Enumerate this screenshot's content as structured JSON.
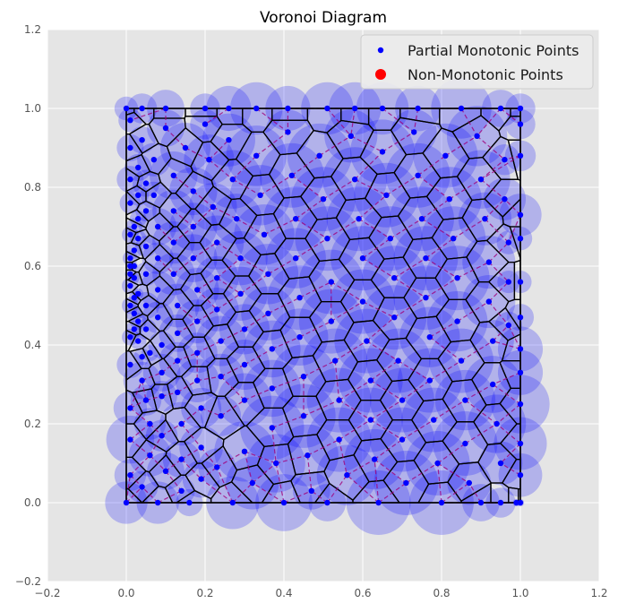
{
  "chart_data": {
    "type": "scatter",
    "title": "Voronoi Diagram",
    "xlabel": "",
    "ylabel": "",
    "xlim": [
      -0.2,
      1.2
    ],
    "ylim": [
      -0.2,
      1.2
    ],
    "xticks": [
      "−0.2",
      "0.0",
      "0.2",
      "0.4",
      "0.6",
      "0.8",
      "1.0",
      "1.2"
    ],
    "yticks": [
      "−0.2",
      "0.0",
      "0.2",
      "0.4",
      "0.6",
      "0.8",
      "1.0",
      "1.2"
    ],
    "xtick_values": [
      -0.2,
      0.0,
      0.2,
      0.4,
      0.6,
      0.8,
      1.0,
      1.2
    ],
    "ytick_values": [
      -0.2,
      0.0,
      0.2,
      0.4,
      0.6,
      0.8,
      1.0,
      1.2
    ],
    "grid": true,
    "legend_position": "top-right",
    "boundary": {
      "x": [
        0,
        1
      ],
      "y": [
        0,
        1
      ]
    },
    "series": [
      {
        "name": "Partial Monotonic Points",
        "color": "#0000ff",
        "marker": "circle",
        "points": [
          [
            0,
            0
          ],
          [
            0.08,
            0
          ],
          [
            0.16,
            0
          ],
          [
            0.27,
            0
          ],
          [
            0.4,
            0
          ],
          [
            0.51,
            0
          ],
          [
            0.64,
            0
          ],
          [
            0.8,
            0
          ],
          [
            0.9,
            0
          ],
          [
            0.95,
            0
          ],
          [
            0.99,
            0
          ],
          [
            1,
            0
          ],
          [
            0,
            1
          ],
          [
            0.04,
            1
          ],
          [
            0.1,
            1
          ],
          [
            0.2,
            1
          ],
          [
            0.26,
            1
          ],
          [
            0.33,
            1
          ],
          [
            0.41,
            1
          ],
          [
            0.51,
            1
          ],
          [
            0.58,
            1
          ],
          [
            0.65,
            1
          ],
          [
            0.74,
            1
          ],
          [
            0.85,
            1
          ],
          [
            0.95,
            1
          ],
          [
            1,
            1
          ],
          [
            1,
            0.07
          ],
          [
            1,
            0.15
          ],
          [
            1,
            0.25
          ],
          [
            1,
            0.33
          ],
          [
            1,
            0.39
          ],
          [
            1,
            0.47
          ],
          [
            1,
            0.56
          ],
          [
            1,
            0.67
          ],
          [
            1,
            0.73
          ],
          [
            1,
            0.88
          ],
          [
            1,
            0.96
          ],
          [
            0.01,
            0.97
          ],
          [
            0.01,
            0.9
          ],
          [
            0.01,
            0.82
          ],
          [
            0.01,
            0.76
          ],
          [
            0.01,
            0.68
          ],
          [
            0.01,
            0.6
          ],
          [
            0.01,
            0.5
          ],
          [
            0.01,
            0.42
          ],
          [
            0.01,
            0.35
          ],
          [
            0.01,
            0.24
          ],
          [
            0.01,
            0.16
          ],
          [
            0.01,
            0.07
          ],
          [
            0.01,
            0.55
          ],
          [
            0.01,
            0.58
          ],
          [
            0.01,
            0.62
          ],
          [
            0.02,
            0.52
          ],
          [
            0.02,
            0.6
          ],
          [
            0.02,
            0.57
          ],
          [
            0.03,
            0.53
          ],
          [
            0.02,
            0.48
          ],
          [
            0.02,
            0.44
          ],
          [
            0.02,
            0.64
          ],
          [
            0.03,
            0.67
          ],
          [
            0.02,
            0.7
          ],
          [
            0.03,
            0.72
          ],
          [
            0.03,
            0.46
          ],
          [
            0.03,
            0.41
          ],
          [
            0.03,
            0.78
          ],
          [
            0.03,
            0.85
          ],
          [
            0.04,
            0.92
          ],
          [
            0.04,
            0.37
          ],
          [
            0.04,
            0.31
          ],
          [
            0.05,
            0.26
          ],
          [
            0.05,
            0.81
          ],
          [
            0.05,
            0.74
          ],
          [
            0.05,
            0.65
          ],
          [
            0.05,
            0.58
          ],
          [
            0.05,
            0.5
          ],
          [
            0.05,
            0.44
          ],
          [
            0.06,
            0.38
          ],
          [
            0.06,
            0.2
          ],
          [
            0.06,
            0.12
          ],
          [
            0.04,
            0.04
          ],
          [
            0.07,
            0.87
          ],
          [
            0.07,
            0.78
          ],
          [
            0.08,
            0.7
          ],
          [
            0.08,
            0.62
          ],
          [
            0.08,
            0.54
          ],
          [
            0.08,
            0.47
          ],
          [
            0.09,
            0.4
          ],
          [
            0.09,
            0.33
          ],
          [
            0.09,
            0.27
          ],
          [
            0.09,
            0.17
          ],
          [
            0.1,
            0.08
          ],
          [
            0.1,
            0.95
          ],
          [
            0.12,
            0.83
          ],
          [
            0.12,
            0.74
          ],
          [
            0.12,
            0.66
          ],
          [
            0.12,
            0.58
          ],
          [
            0.13,
            0.5
          ],
          [
            0.13,
            0.43
          ],
          [
            0.13,
            0.36
          ],
          [
            0.13,
            0.28
          ],
          [
            0.14,
            0.2
          ],
          [
            0.14,
            0.11
          ],
          [
            0.14,
            0.03
          ],
          [
            0.15,
            0.9
          ],
          [
            0.17,
            0.79
          ],
          [
            0.17,
            0.7
          ],
          [
            0.17,
            0.62
          ],
          [
            0.18,
            0.54
          ],
          [
            0.18,
            0.46
          ],
          [
            0.18,
            0.38
          ],
          [
            0.18,
            0.31
          ],
          [
            0.19,
            0.24
          ],
          [
            0.19,
            0.14
          ],
          [
            0.19,
            0.06
          ],
          [
            0.2,
            0.96
          ],
          [
            0.21,
            0.87
          ],
          [
            0.22,
            0.75
          ],
          [
            0.23,
            0.66
          ],
          [
            0.23,
            0.57
          ],
          [
            0.23,
            0.49
          ],
          [
            0.24,
            0.41
          ],
          [
            0.24,
            0.32
          ],
          [
            0.24,
            0.22
          ],
          [
            0.23,
            0.09
          ],
          [
            0.26,
            0.92
          ],
          [
            0.27,
            0.82
          ],
          [
            0.28,
            0.72
          ],
          [
            0.29,
            0.62
          ],
          [
            0.29,
            0.53
          ],
          [
            0.3,
            0.44
          ],
          [
            0.3,
            0.35
          ],
          [
            0.3,
            0.26
          ],
          [
            0.3,
            0.13
          ],
          [
            0.32,
            0.05
          ],
          [
            0.33,
            0.88
          ],
          [
            0.34,
            0.78
          ],
          [
            0.35,
            0.68
          ],
          [
            0.36,
            0.58
          ],
          [
            0.36,
            0.48
          ],
          [
            0.37,
            0.39
          ],
          [
            0.37,
            0.29
          ],
          [
            0.37,
            0.19
          ],
          [
            0.38,
            0.1
          ],
          [
            0.41,
            0.94
          ],
          [
            0.42,
            0.83
          ],
          [
            0.43,
            0.72
          ],
          [
            0.43,
            0.62
          ],
          [
            0.44,
            0.52
          ],
          [
            0.44,
            0.42
          ],
          [
            0.45,
            0.32
          ],
          [
            0.45,
            0.22
          ],
          [
            0.46,
            0.12
          ],
          [
            0.47,
            0.03
          ],
          [
            0.49,
            0.88
          ],
          [
            0.5,
            0.77
          ],
          [
            0.51,
            0.67
          ],
          [
            0.52,
            0.56
          ],
          [
            0.52,
            0.46
          ],
          [
            0.53,
            0.36
          ],
          [
            0.54,
            0.26
          ],
          [
            0.54,
            0.16
          ],
          [
            0.56,
            0.07
          ],
          [
            0.57,
            0.93
          ],
          [
            0.58,
            0.82
          ],
          [
            0.59,
            0.72
          ],
          [
            0.6,
            0.62
          ],
          [
            0.6,
            0.51
          ],
          [
            0.61,
            0.41
          ],
          [
            0.62,
            0.31
          ],
          [
            0.62,
            0.21
          ],
          [
            0.63,
            0.11
          ],
          [
            0.65,
            0.89
          ],
          [
            0.66,
            0.78
          ],
          [
            0.67,
            0.67
          ],
          [
            0.68,
            0.57
          ],
          [
            0.68,
            0.47
          ],
          [
            0.69,
            0.36
          ],
          [
            0.7,
            0.26
          ],
          [
            0.7,
            0.16
          ],
          [
            0.71,
            0.05
          ],
          [
            0.73,
            0.94
          ],
          [
            0.74,
            0.83
          ],
          [
            0.75,
            0.72
          ],
          [
            0.76,
            0.62
          ],
          [
            0.76,
            0.52
          ],
          [
            0.77,
            0.42
          ],
          [
            0.77,
            0.31
          ],
          [
            0.78,
            0.21
          ],
          [
            0.79,
            0.1
          ],
          [
            0.81,
            0.88
          ],
          [
            0.82,
            0.77
          ],
          [
            0.83,
            0.67
          ],
          [
            0.84,
            0.57
          ],
          [
            0.84,
            0.46
          ],
          [
            0.85,
            0.36
          ],
          [
            0.86,
            0.26
          ],
          [
            0.86,
            0.15
          ],
          [
            0.87,
            0.05
          ],
          [
            0.89,
            0.93
          ],
          [
            0.9,
            0.82
          ],
          [
            0.91,
            0.72
          ],
          [
            0.92,
            0.61
          ],
          [
            0.92,
            0.51
          ],
          [
            0.93,
            0.41
          ],
          [
            0.93,
            0.3
          ],
          [
            0.94,
            0.2
          ],
          [
            0.95,
            0.1
          ],
          [
            0.96,
            0.87
          ],
          [
            0.96,
            0.77
          ],
          [
            0.97,
            0.66
          ],
          [
            0.97,
            0.56
          ],
          [
            0.97,
            0.45
          ]
        ]
      },
      {
        "name": "Non-Monotonic Points",
        "color": "#ff0000",
        "marker": "circle",
        "points": []
      }
    ]
  }
}
